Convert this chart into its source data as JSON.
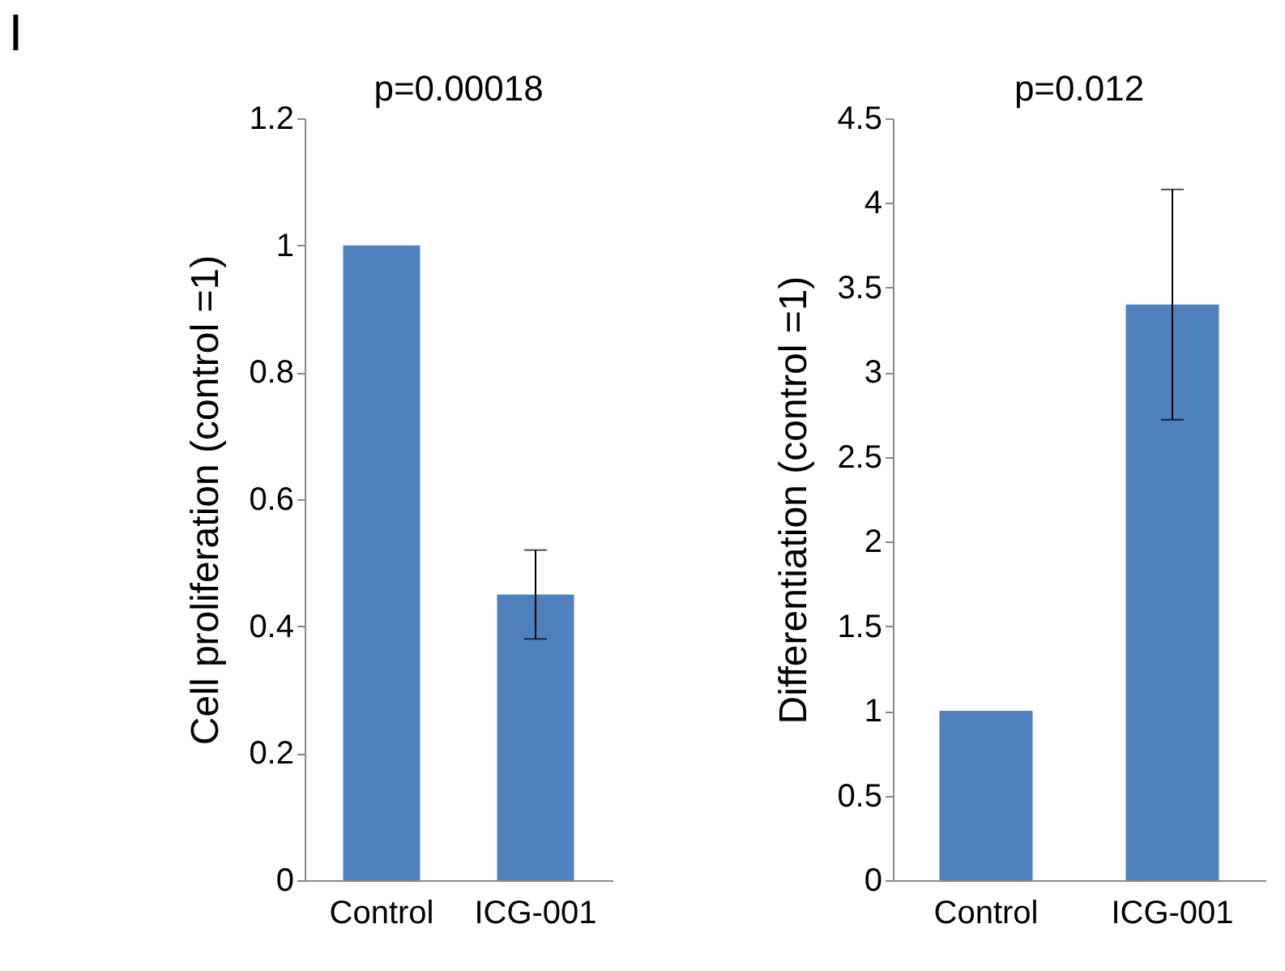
{
  "chart_data": [
    {
      "type": "bar",
      "title": "I",
      "ylabel": "Cell proliferation (control =1)",
      "categories": [
        "Control",
        "ICG-001"
      ],
      "values": [
        1.0,
        0.45
      ],
      "errors": [
        null,
        [
          0.38,
          0.52
        ]
      ],
      "color": "#4f81bd",
      "ylim": [
        0,
        1.2
      ],
      "yticks": [
        0,
        0.2,
        0.4,
        0.6,
        0.8,
        1,
        1.2
      ],
      "grid": false,
      "annotations": [
        "p=0.00018"
      ]
    },
    {
      "type": "bar",
      "ylabel": "Differentiation (control =1)",
      "categories": [
        "Control",
        "ICG-001"
      ],
      "values": [
        1.0,
        3.4
      ],
      "errors": [
        null,
        [
          2.72,
          4.08
        ]
      ],
      "color": "#4f81bd",
      "ylim": [
        0,
        4.5
      ],
      "yticks": [
        0,
        0.5,
        1,
        1.5,
        2,
        2.5,
        3,
        3.5,
        4,
        4.5
      ],
      "grid": false,
      "annotations": [
        "p=0.012"
      ]
    }
  ]
}
